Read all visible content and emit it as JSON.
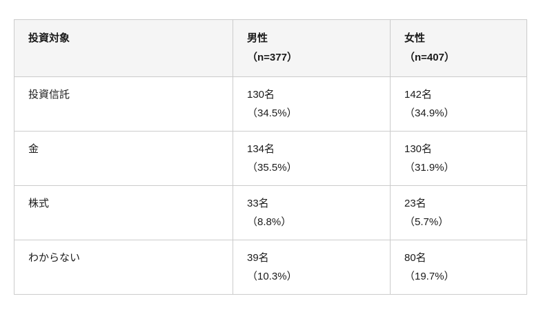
{
  "page": {
    "background": "#ffffff"
  },
  "table": {
    "header": {
      "category": "投資対象",
      "male": [
        "男性",
        "（n=377）"
      ],
      "female": [
        "女性",
        "（n=407）"
      ]
    },
    "rows": [
      {
        "category": "投資信託",
        "male": [
          "130名",
          "（34.5%）"
        ],
        "female": [
          "142名",
          "（34.9%）"
        ]
      },
      {
        "category": "金",
        "male": [
          "134名",
          "（35.5%）"
        ],
        "female": [
          "130名",
          "（31.9%）"
        ]
      },
      {
        "category": "株式",
        "male": [
          "33名",
          "（8.8%）"
        ],
        "female": [
          "23名",
          "（5.7%）"
        ]
      },
      {
        "category": "わからない",
        "male": [
          "39名",
          "（10.3%）"
        ],
        "female": [
          "80名",
          "（19.7%）"
        ]
      }
    ],
    "colors": {
      "header_bg": "#f5f5f5",
      "border": "#cbcbcb",
      "text": "#1a1a1a"
    }
  },
  "chart_data": {
    "type": "table",
    "columns": [
      "投資対象",
      "男性（n=377）",
      "女性（n=407）"
    ],
    "categories": [
      "投資信託",
      "金",
      "株式",
      "わからない"
    ],
    "series": [
      {
        "name": "男性",
        "n": 377,
        "counts": [
          130,
          134,
          33,
          39
        ],
        "percents": [
          34.5,
          35.5,
          8.8,
          10.3
        ]
      },
      {
        "name": "女性",
        "n": 407,
        "counts": [
          142,
          130,
          23,
          80
        ],
        "percents": [
          34.9,
          31.9,
          5.7,
          19.7
        ]
      }
    ],
    "legend_position": "none",
    "grid": true
  }
}
